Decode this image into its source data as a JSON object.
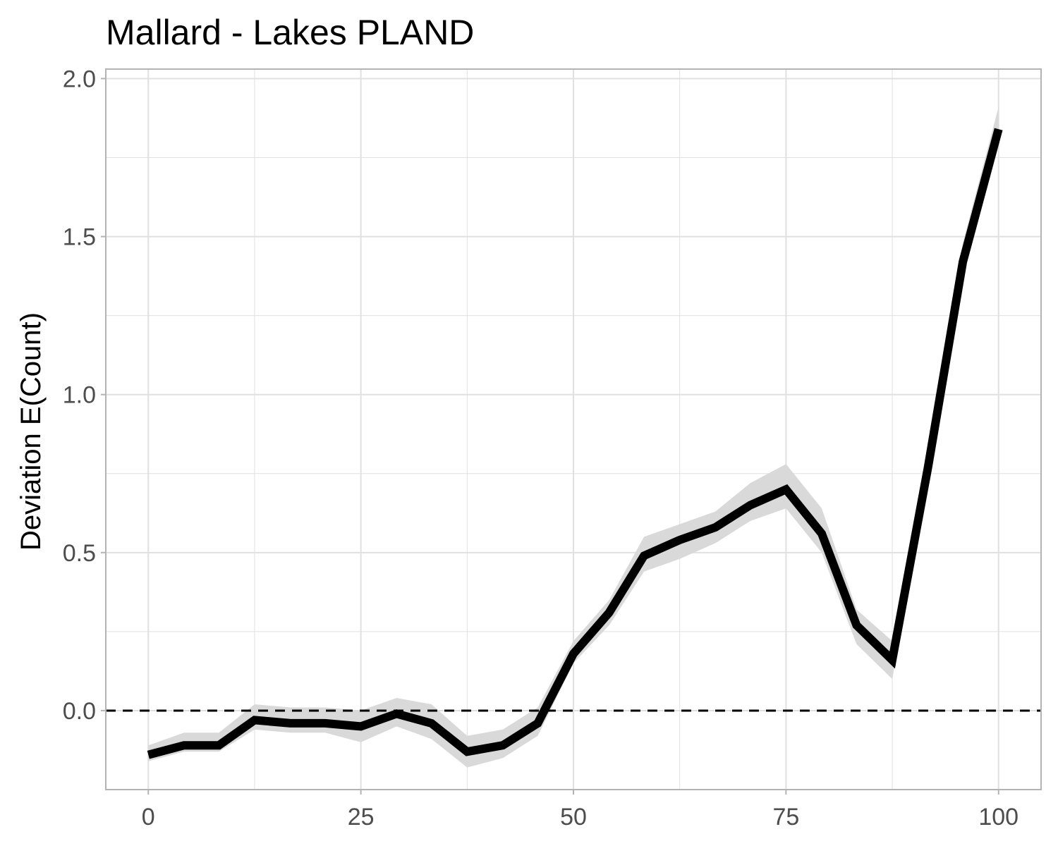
{
  "chart_data": {
    "type": "line",
    "title": "Mallard - Lakes PLAND",
    "xlabel": "",
    "ylabel": "Deviation E(Count)",
    "xlim": [
      -5,
      105
    ],
    "ylim": [
      -0.25,
      2.03
    ],
    "x_ticks": [
      0,
      25,
      50,
      75,
      100
    ],
    "x_tick_labels": [
      "0",
      "25",
      "50",
      "75",
      "100"
    ],
    "y_ticks": [
      0.0,
      0.5,
      1.0,
      1.5,
      2.0
    ],
    "y_tick_labels": [
      "0.0",
      "0.5",
      "1.0",
      "1.5",
      "2.0"
    ],
    "x_minor_ticks": [
      12.5,
      37.5,
      62.5,
      87.5
    ],
    "y_minor_ticks": [
      -0.25,
      0.25,
      0.75,
      1.25,
      1.75
    ],
    "grid": true,
    "reference_line": {
      "y": 0,
      "style": "dashed"
    },
    "series": [
      {
        "x": [
          0,
          4.2,
          8.3,
          12.5,
          16.7,
          20.8,
          25,
          29.2,
          33.3,
          37.5,
          41.7,
          45.8,
          50,
          54.2,
          58.3,
          62.5,
          66.7,
          70.8,
          75,
          79.2,
          83.3,
          87.5,
          91.7,
          95.8,
          100
        ],
        "y": [
          -0.14,
          -0.11,
          -0.11,
          -0.03,
          -0.04,
          -0.04,
          -0.05,
          -0.01,
          -0.04,
          -0.13,
          -0.11,
          -0.04,
          0.18,
          0.31,
          0.49,
          0.54,
          0.58,
          0.65,
          0.7,
          0.56,
          0.27,
          0.16,
          0.77,
          1.42,
          1.84
        ],
        "lower": [
          -0.16,
          -0.13,
          -0.13,
          -0.06,
          -0.07,
          -0.07,
          -0.1,
          -0.05,
          -0.09,
          -0.18,
          -0.15,
          -0.08,
          0.15,
          0.27,
          0.44,
          0.48,
          0.53,
          0.6,
          0.64,
          0.5,
          0.21,
          0.1,
          0.72,
          1.39,
          1.81
        ],
        "upper": [
          -0.11,
          -0.07,
          -0.07,
          0.02,
          0.01,
          0.01,
          0.0,
          0.04,
          0.02,
          -0.08,
          -0.06,
          0.01,
          0.22,
          0.35,
          0.55,
          0.59,
          0.63,
          0.72,
          0.78,
          0.64,
          0.32,
          0.22,
          0.82,
          1.48,
          1.91
        ]
      }
    ],
    "colors": {
      "line": "#000000",
      "band": "#d9d9d9",
      "grid": "#e0e0e0",
      "panel_border": "#b3b3b3",
      "tick_text": "#4d4d4d",
      "axis_tick": "#b3b3b3",
      "reference_line": "#000000"
    }
  }
}
